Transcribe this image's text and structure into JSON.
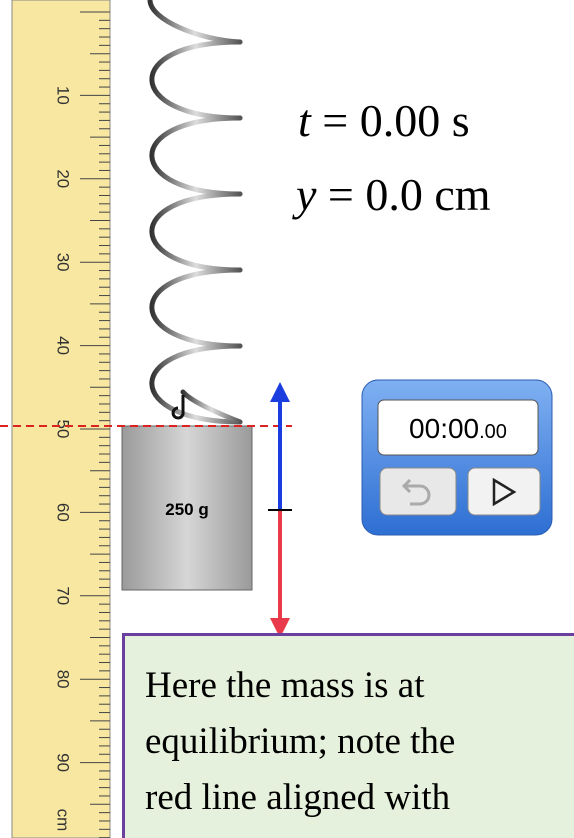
{
  "ruler": {
    "labels": [
      "10",
      "20",
      "30",
      "40",
      "50",
      "60",
      "70",
      "80",
      "90"
    ],
    "unit": "cm"
  },
  "readouts": {
    "time": {
      "symbol": "t",
      "text": "= 0.00 s"
    },
    "position": {
      "symbol": "y",
      "text": "= 0.0 cm"
    }
  },
  "mass": {
    "label": "250 g"
  },
  "stopwatch": {
    "time": "00:00",
    "fraction": ".00"
  },
  "caption": {
    "lines": [
      "Here the mass is at",
      "equilibrium; note the",
      "red line aligned with"
    ]
  }
}
